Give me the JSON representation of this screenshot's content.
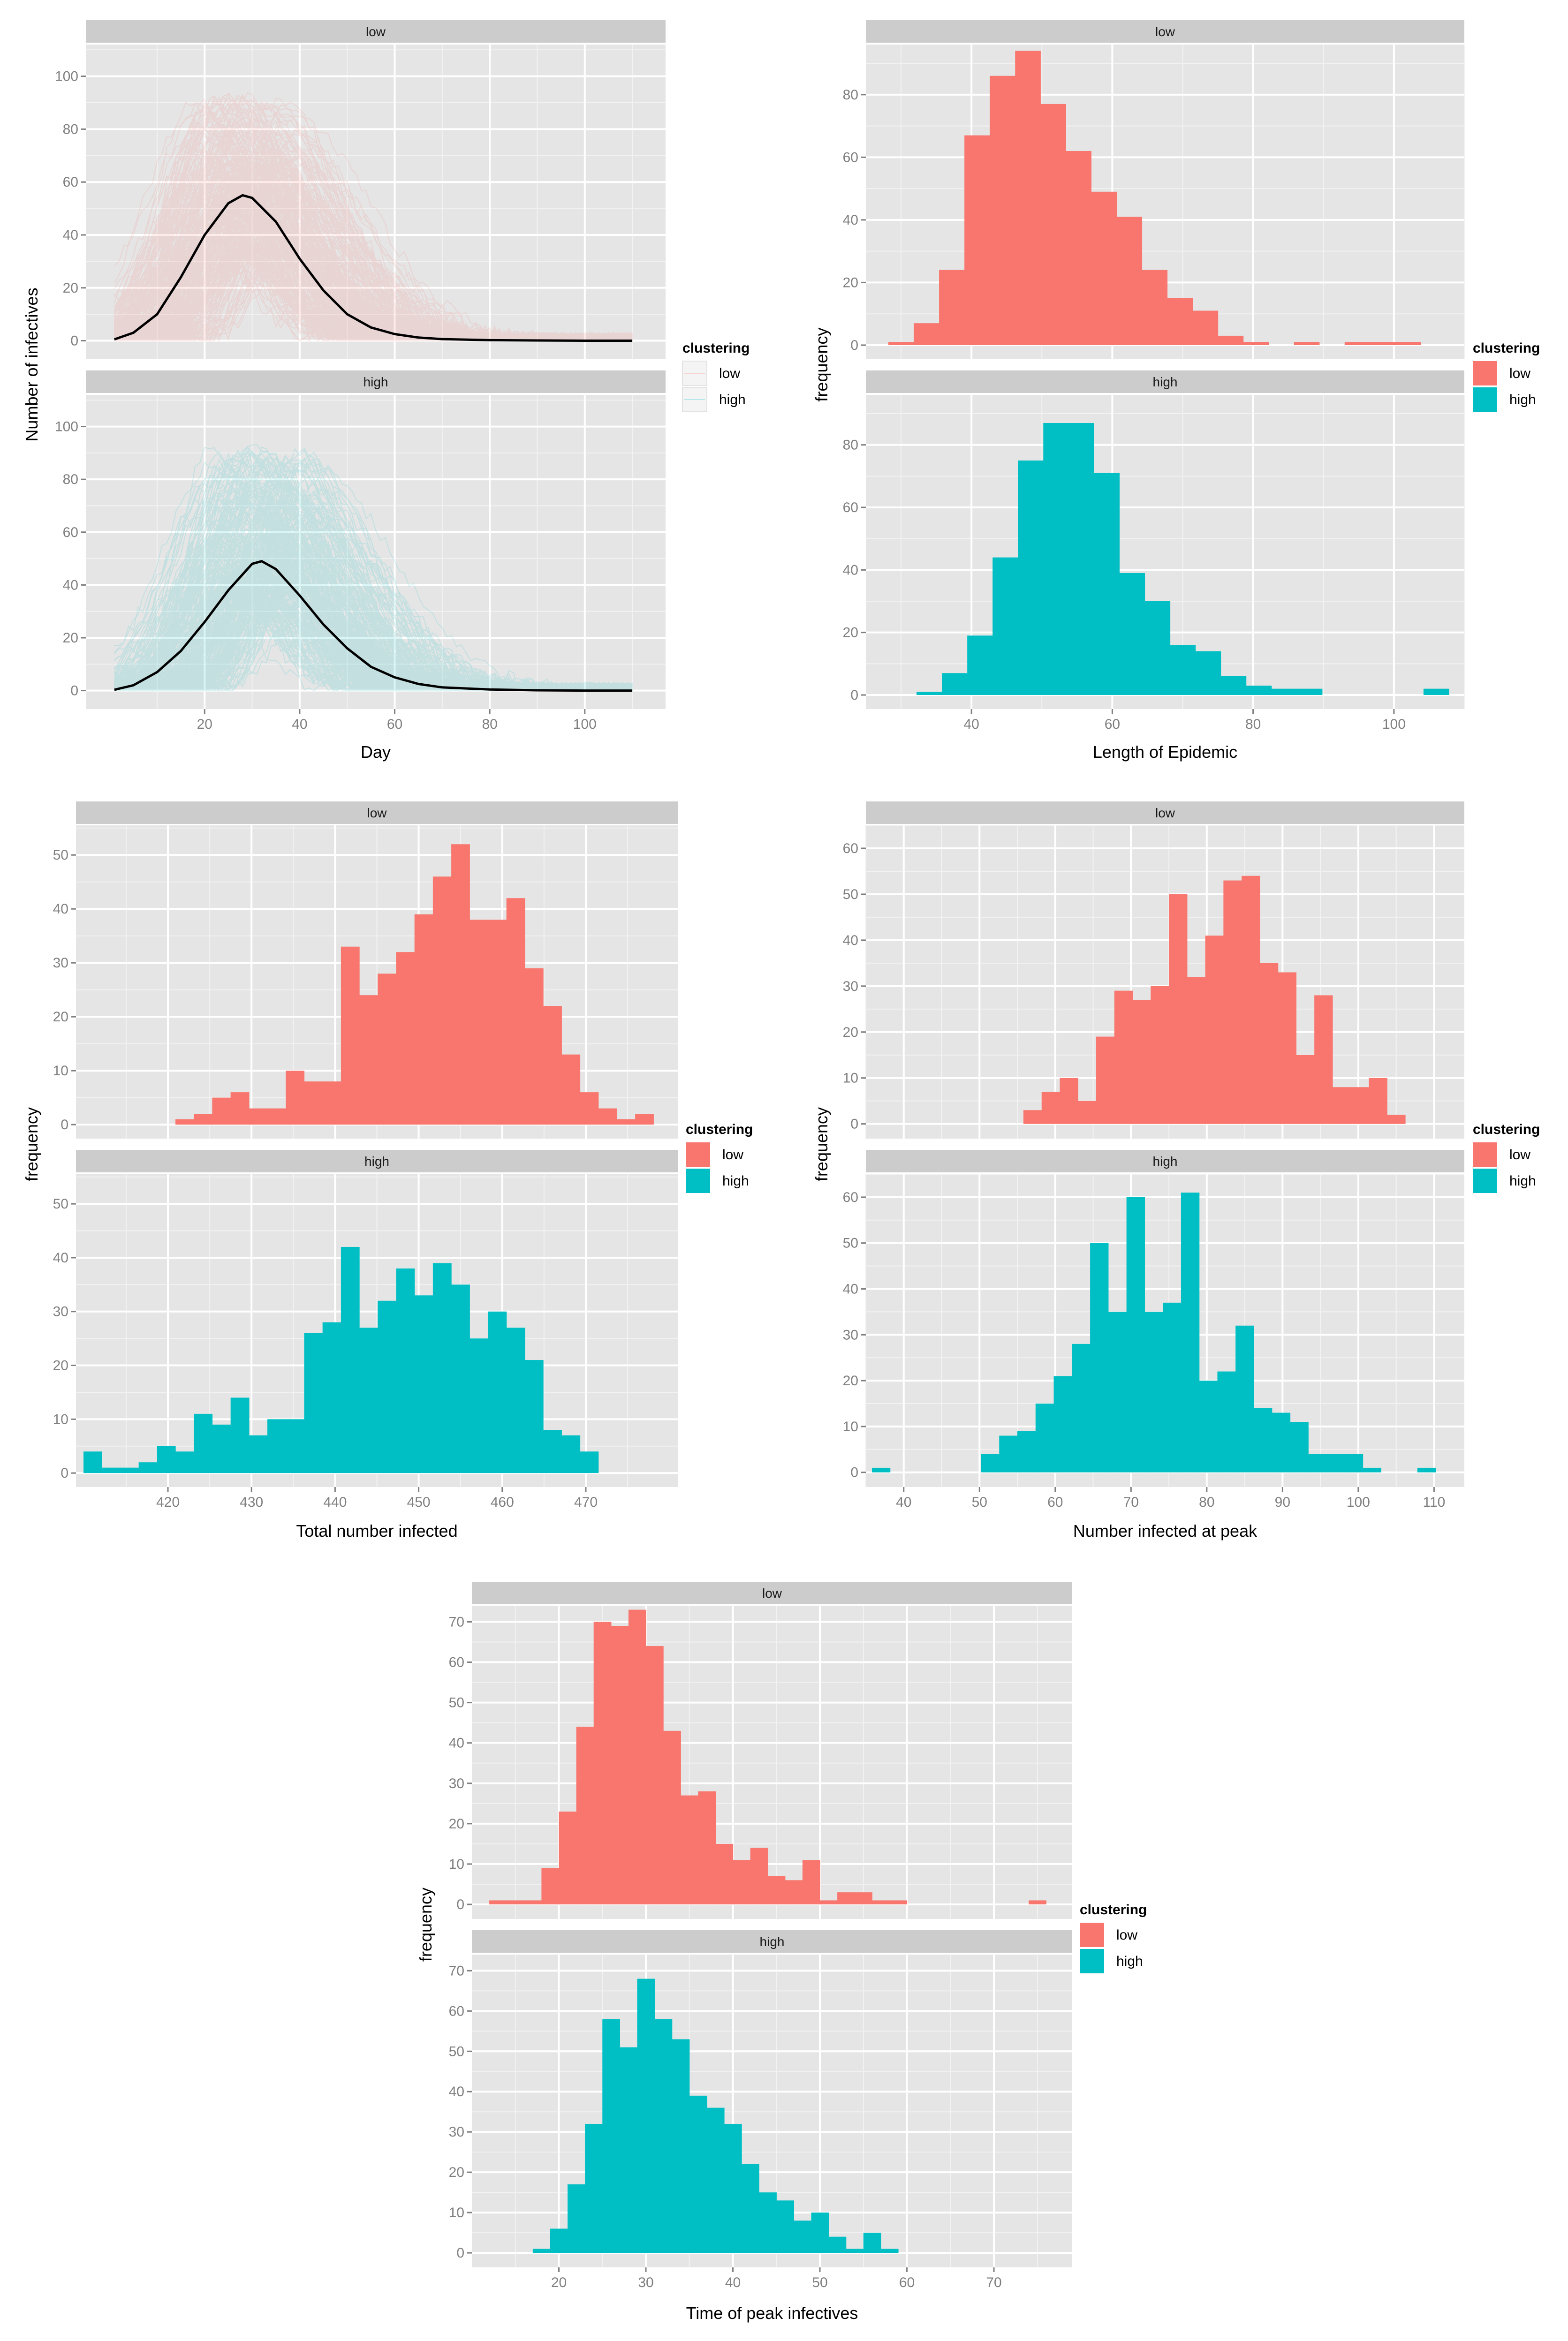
{
  "colors": {
    "low": "#F8766D",
    "high": "#00BFC4",
    "mean_line": "#000000"
  },
  "legend": {
    "title": "clustering",
    "items": [
      "low",
      "high"
    ]
  },
  "chart_data": [
    {
      "id": "epidemic-curves",
      "type": "line",
      "facets": [
        "low",
        "high"
      ],
      "xlabel": "Day",
      "ylabel": "Number of infectives",
      "xlim": [
        -5,
        117
      ],
      "ylim": [
        -7,
        112
      ],
      "x_ticks": [
        20,
        40,
        60,
        80,
        100
      ],
      "y_ticks": [
        0,
        20,
        40,
        60,
        80,
        100
      ],
      "series": [
        {
          "name": "low",
          "mean_curve": {
            "x": [
              1,
              5,
              10,
              15,
              20,
              25,
              28,
              30,
              35,
              40,
              45,
              50,
              55,
              60,
              65,
              70,
              80,
              90,
              100,
              110
            ],
            "y": [
              0.5,
              3,
              10,
              24,
              40,
              52,
              55,
              54,
              45,
              31,
              19,
              10,
              5,
              2.5,
              1.2,
              0.6,
              0.2,
              0.1,
              0,
              0
            ]
          }
        },
        {
          "name": "high",
          "mean_curve": {
            "x": [
              1,
              5,
              10,
              15,
              20,
              25,
              30,
              32,
              35,
              40,
              45,
              50,
              55,
              60,
              65,
              70,
              80,
              90,
              100,
              110
            ],
            "y": [
              0.3,
              2,
              7,
              15,
              26,
              38,
              48,
              49,
              46,
              36,
              25,
              16,
              9,
              5,
              2.5,
              1.2,
              0.4,
              0.1,
              0,
              0
            ]
          }
        }
      ]
    },
    {
      "id": "epidemic-length",
      "type": "bar",
      "facets": [
        "low",
        "high"
      ],
      "xlabel": "Length of Epidemic",
      "ylabel": "frequency",
      "xlim": [
        25,
        110
      ],
      "ylim": [
        -4.5,
        96
      ],
      "x_ticks": [
        40,
        60,
        80,
        100
      ],
      "y_ticks": [
        0,
        20,
        40,
        60,
        80
      ],
      "series": [
        {
          "name": "low",
          "bin_width": 3.6,
          "x": [
            30,
            33.6,
            37.2,
            40.8,
            44.4,
            48,
            51.6,
            55.2,
            58.8,
            62.4,
            66,
            69.6,
            73.2,
            76.8,
            80.4,
            84,
            87.6,
            91.2,
            94.8,
            98.4,
            102
          ],
          "values": [
            1,
            7,
            24,
            67,
            86,
            94,
            77,
            62,
            49,
            41,
            24,
            15,
            11,
            3,
            1,
            0,
            1,
            0,
            1,
            1,
            1
          ]
        },
        {
          "name": "high",
          "bin_width": 3.6,
          "x": [
            34,
            37.6,
            41.2,
            44.8,
            48.4,
            52,
            55.6,
            59.2,
            62.8,
            66.4,
            70,
            73.6,
            77.2,
            80.8,
            84.4,
            88,
            91.6,
            95.2,
            98.8,
            102.4,
            106
          ],
          "values": [
            1,
            7,
            19,
            44,
            75,
            87,
            87,
            71,
            39,
            30,
            16,
            14,
            6,
            3,
            2,
            2,
            0,
            0,
            0,
            0,
            2
          ]
        }
      ]
    },
    {
      "id": "total-infected",
      "type": "bar",
      "facets": [
        "low",
        "high"
      ],
      "xlabel": "Total number infected",
      "ylabel": "frequency",
      "xlim": [
        409,
        481
      ],
      "ylim": [
        -2.6,
        55.5
      ],
      "x_ticks": [
        420,
        430,
        440,
        450,
        460,
        470
      ],
      "y_ticks": [
        0,
        10,
        20,
        30,
        40,
        50
      ],
      "series": [
        {
          "name": "low",
          "bin_width": 2.2,
          "x": [
            422,
            424.2,
            426.4,
            428.6,
            430.8,
            433,
            435.2,
            437.4,
            439.6,
            441.8,
            444,
            446.2,
            448.4,
            450.6,
            452.8,
            455,
            457.2,
            459.4,
            461.6,
            463.8,
            466,
            468.2,
            470.4,
            472.6,
            474.8,
            477
          ],
          "values": [
            1,
            2,
            5,
            6,
            3,
            3,
            10,
            8,
            8,
            33,
            24,
            28,
            32,
            39,
            46,
            52,
            38,
            38,
            42,
            29,
            22,
            13,
            6,
            3,
            1,
            2
          ]
        },
        {
          "name": "high",
          "bin_width": 2.2,
          "x": [
            411,
            413.2,
            415.4,
            417.6,
            419.8,
            422,
            424.2,
            426.4,
            428.6,
            430.8,
            433,
            435.2,
            437.4,
            439.6,
            441.8,
            444,
            446.2,
            448.4,
            450.6,
            452.8,
            455,
            457.2,
            459.4,
            461.6,
            463.8,
            466,
            468.2,
            470.4
          ],
          "values": [
            4,
            1,
            1,
            2,
            5,
            4,
            11,
            9,
            14,
            7,
            10,
            10,
            26,
            28,
            42,
            27,
            32,
            38,
            33,
            39,
            35,
            25,
            30,
            27,
            21,
            8,
            7,
            4
          ]
        }
      ]
    },
    {
      "id": "infected-at-peak",
      "type": "bar",
      "facets": [
        "low",
        "high"
      ],
      "xlabel": "Number infected at peak",
      "ylabel": "frequency",
      "xlim": [
        35,
        114
      ],
      "ylim": [
        -3.2,
        65
      ],
      "x_ticks": [
        40,
        50,
        60,
        70,
        80,
        90,
        100,
        110
      ],
      "y_ticks": [
        0,
        10,
        20,
        30,
        40,
        50,
        60
      ],
      "series": [
        {
          "name": "low",
          "bin_width": 2.4,
          "x": [
            57,
            59.4,
            61.8,
            64.2,
            66.6,
            69,
            71.4,
            73.8,
            76.2,
            78.6,
            81,
            83.4,
            85.8,
            88.2,
            90.6,
            93,
            95.4,
            97.8,
            100.2,
            102.6,
            105
          ],
          "values": [
            3,
            7,
            10,
            5,
            19,
            29,
            27,
            30,
            50,
            32,
            41,
            53,
            54,
            35,
            33,
            15,
            28,
            8,
            8,
            10,
            2
          ]
        },
        {
          "name": "high",
          "bin_width": 2.4,
          "x": [
            37,
            39.4,
            41.8,
            44.2,
            46.6,
            49,
            51.4,
            53.8,
            56.2,
            58.6,
            61,
            63.4,
            65.8,
            68.2,
            70.6,
            73,
            75.4,
            77.8,
            80.2,
            82.6,
            85,
            87.4,
            89.8,
            92.2,
            94.6,
            97,
            99.4,
            101.8,
            104.2,
            106.6,
            109
          ],
          "values": [
            1,
            0,
            0,
            0,
            0,
            0,
            4,
            8,
            9,
            15,
            21,
            28,
            50,
            35,
            60,
            35,
            37,
            61,
            20,
            22,
            32,
            14,
            13,
            11,
            4,
            4,
            4,
            1,
            0,
            0,
            1
          ]
        }
      ]
    },
    {
      "id": "time-of-peak",
      "type": "bar",
      "facets": [
        "low",
        "high"
      ],
      "xlabel": "Time of peak infectives",
      "ylabel": "frequency",
      "xlim": [
        10,
        79
      ],
      "ylim": [
        -3.6,
        74
      ],
      "x_ticks": [
        20,
        30,
        40,
        50,
        60,
        70
      ],
      "y_ticks": [
        0,
        10,
        20,
        30,
        40,
        50,
        60,
        70
      ],
      "series": [
        {
          "name": "low",
          "bin_width": 2.0,
          "x": [
            13,
            15,
            17,
            19,
            21,
            23,
            25,
            27,
            29,
            31,
            33,
            35,
            37,
            39,
            41,
            43,
            45,
            47,
            49,
            51,
            53,
            55,
            57,
            59,
            61,
            63,
            65,
            67,
            69,
            71,
            73,
            75
          ],
          "values": [
            1,
            1,
            1,
            9,
            23,
            44,
            70,
            69,
            73,
            64,
            43,
            27,
            28,
            15,
            11,
            14,
            7,
            6,
            11,
            1,
            3,
            3,
            1,
            1,
            0,
            0,
            0,
            0,
            0,
            0,
            0,
            1
          ]
        },
        {
          "name": "high",
          "bin_width": 2.0,
          "x": [
            18,
            20,
            22,
            24,
            26,
            28,
            30,
            32,
            34,
            36,
            38,
            40,
            42,
            44,
            46,
            48,
            50,
            52,
            54,
            56,
            58
          ],
          "values": [
            1,
            6,
            17,
            32,
            58,
            51,
            68,
            58,
            53,
            39,
            36,
            32,
            22,
            15,
            13,
            8,
            10,
            4,
            1,
            5,
            1
          ]
        }
      ]
    }
  ]
}
